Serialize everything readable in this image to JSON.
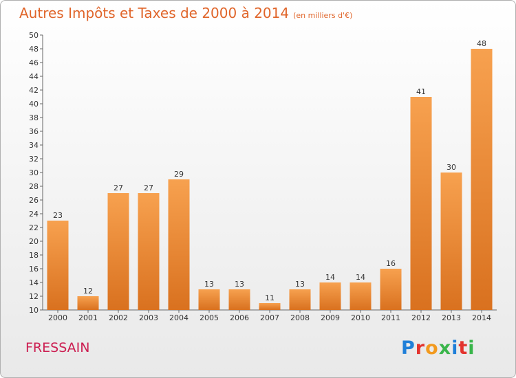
{
  "title": "Autres Impôts et Taxes de 2000 à 2014",
  "subtitle": "(en milliers d'€)",
  "commune": "FRESSAIN",
  "logo": {
    "text": "Proxiti",
    "colors": [
      "#1f7fd8",
      "#e3342f",
      "#f29a1f",
      "#39b54a",
      "#1f7fd8",
      "#e3342f",
      "#39b54a"
    ]
  },
  "colors": {
    "bar_light": "#f7a14f",
    "bar_dark": "#d9711f",
    "title": "#e0652a",
    "commune": "#cc1f52"
  },
  "chart_data": {
    "type": "bar",
    "title": "Autres Impôts et Taxes de 2000 à 2014",
    "subtitle": "(en milliers d'€)",
    "categories": [
      "2000",
      "2001",
      "2002",
      "2003",
      "2004",
      "2005",
      "2006",
      "2007",
      "2008",
      "2009",
      "2010",
      "2011",
      "2012",
      "2013",
      "2014"
    ],
    "values": [
      23,
      12,
      27,
      27,
      29,
      13,
      13,
      11,
      13,
      14,
      14,
      16,
      41,
      30,
      48
    ],
    "ylim": [
      10,
      50
    ],
    "ytick_step": 2,
    "grid": false,
    "xlabel": "",
    "ylabel": ""
  }
}
